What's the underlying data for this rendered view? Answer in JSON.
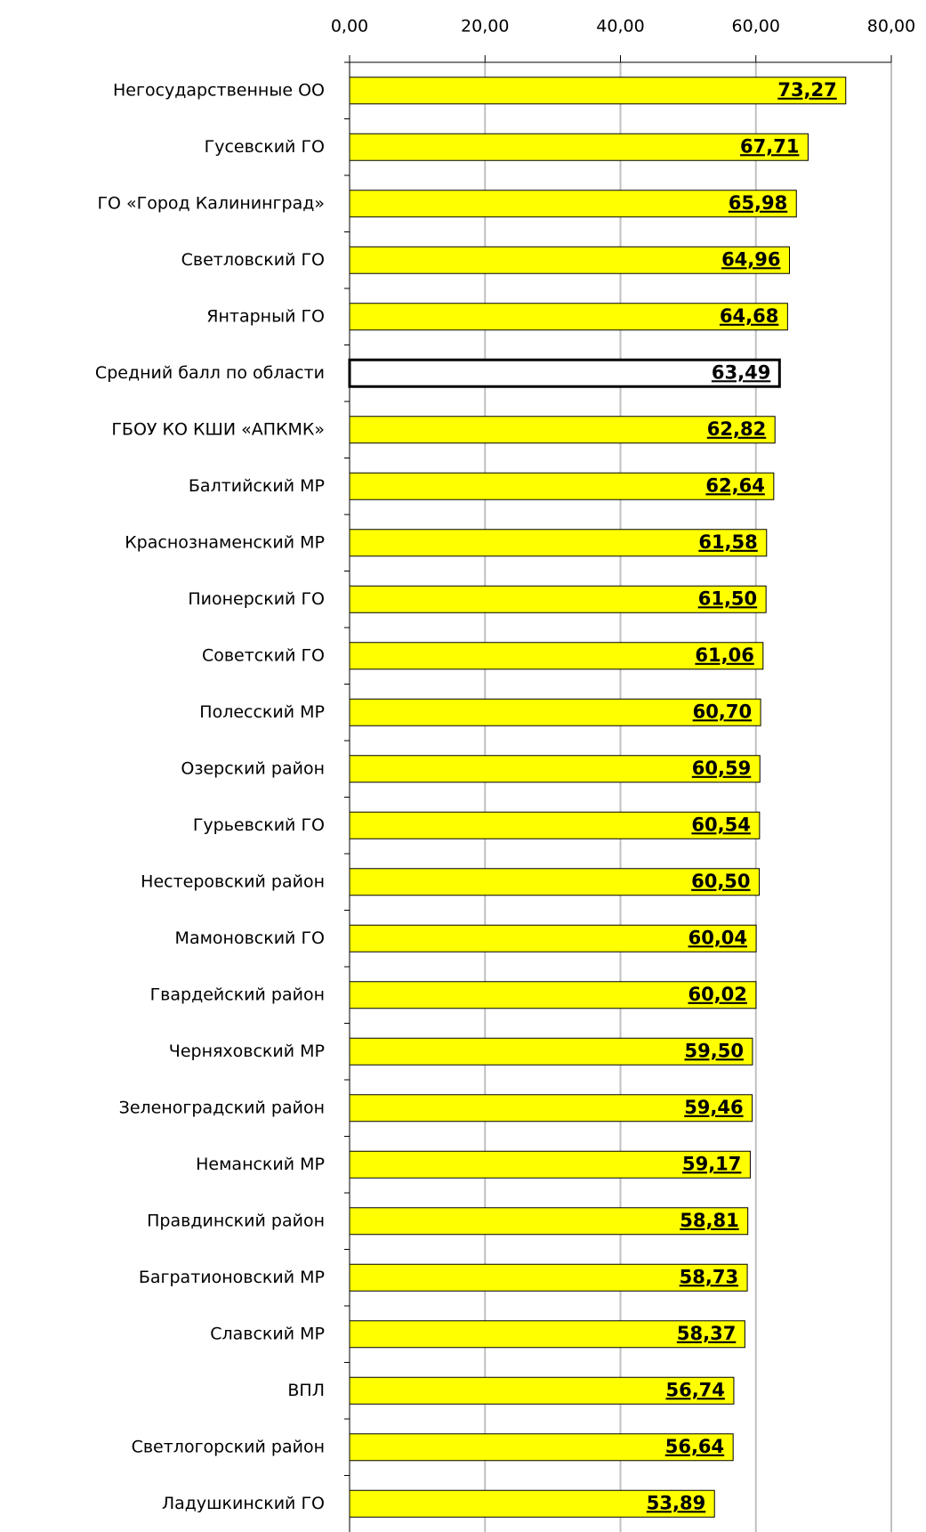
{
  "chart_data": {
    "type": "hbar",
    "categories": [
      "Негосударственные ОО",
      "Гусевский ГО",
      "ГО «Город Калининград»",
      "Светловский ГО",
      "Янтарный ГО",
      "Средний балл по области",
      "ГБОУ КО КШИ «АПКМК»",
      "Балтийский МР",
      "Краснознаменский МР",
      "Пионерский ГО",
      "Советский ГО",
      "Полесский МР",
      "Озерский район",
      "Гурьевский ГО",
      "Нестеровский район",
      "Мамоновский ГО",
      "Гвардейский район",
      "Черняховский МР",
      "Зеленоградский район",
      "Неманский МР",
      "Правдинский район",
      "Багратионовский МР",
      "Славский МР",
      "ВПЛ",
      "Светлогорский район",
      "Ладушкинский ГО"
    ],
    "values": [
      73.27,
      67.71,
      65.98,
      64.96,
      64.68,
      63.49,
      62.82,
      62.64,
      61.58,
      61.5,
      61.06,
      60.7,
      60.59,
      60.54,
      60.5,
      60.04,
      60.02,
      59.5,
      59.46,
      59.17,
      58.81,
      58.73,
      58.37,
      56.74,
      56.64,
      53.89
    ],
    "value_labels": [
      "73,27",
      "67,71",
      "65,98",
      "64,96",
      "64,68",
      "63,49",
      "62,82",
      "62,64",
      "61,58",
      "61,50",
      "61,06",
      "60,70",
      "60,59",
      "60,54",
      "60,50",
      "60,04",
      "60,02",
      "59,50",
      "59,46",
      "59,17",
      "58,81",
      "58,73",
      "58,37",
      "56,74",
      "56,64",
      "53,89"
    ],
    "color": "#ffff00",
    "highlight": "Средний балл по области",
    "highlight_color": "#ffffff",
    "xlim": [
      0,
      80
    ],
    "xticks": [
      {
        "value": 0,
        "label": "0,00"
      },
      {
        "value": 20,
        "label": "20,00"
      },
      {
        "value": 40,
        "label": "40,00"
      },
      {
        "value": 60,
        "label": "60,00"
      },
      {
        "value": 80,
        "label": "80,00"
      }
    ],
    "grid": true
  }
}
